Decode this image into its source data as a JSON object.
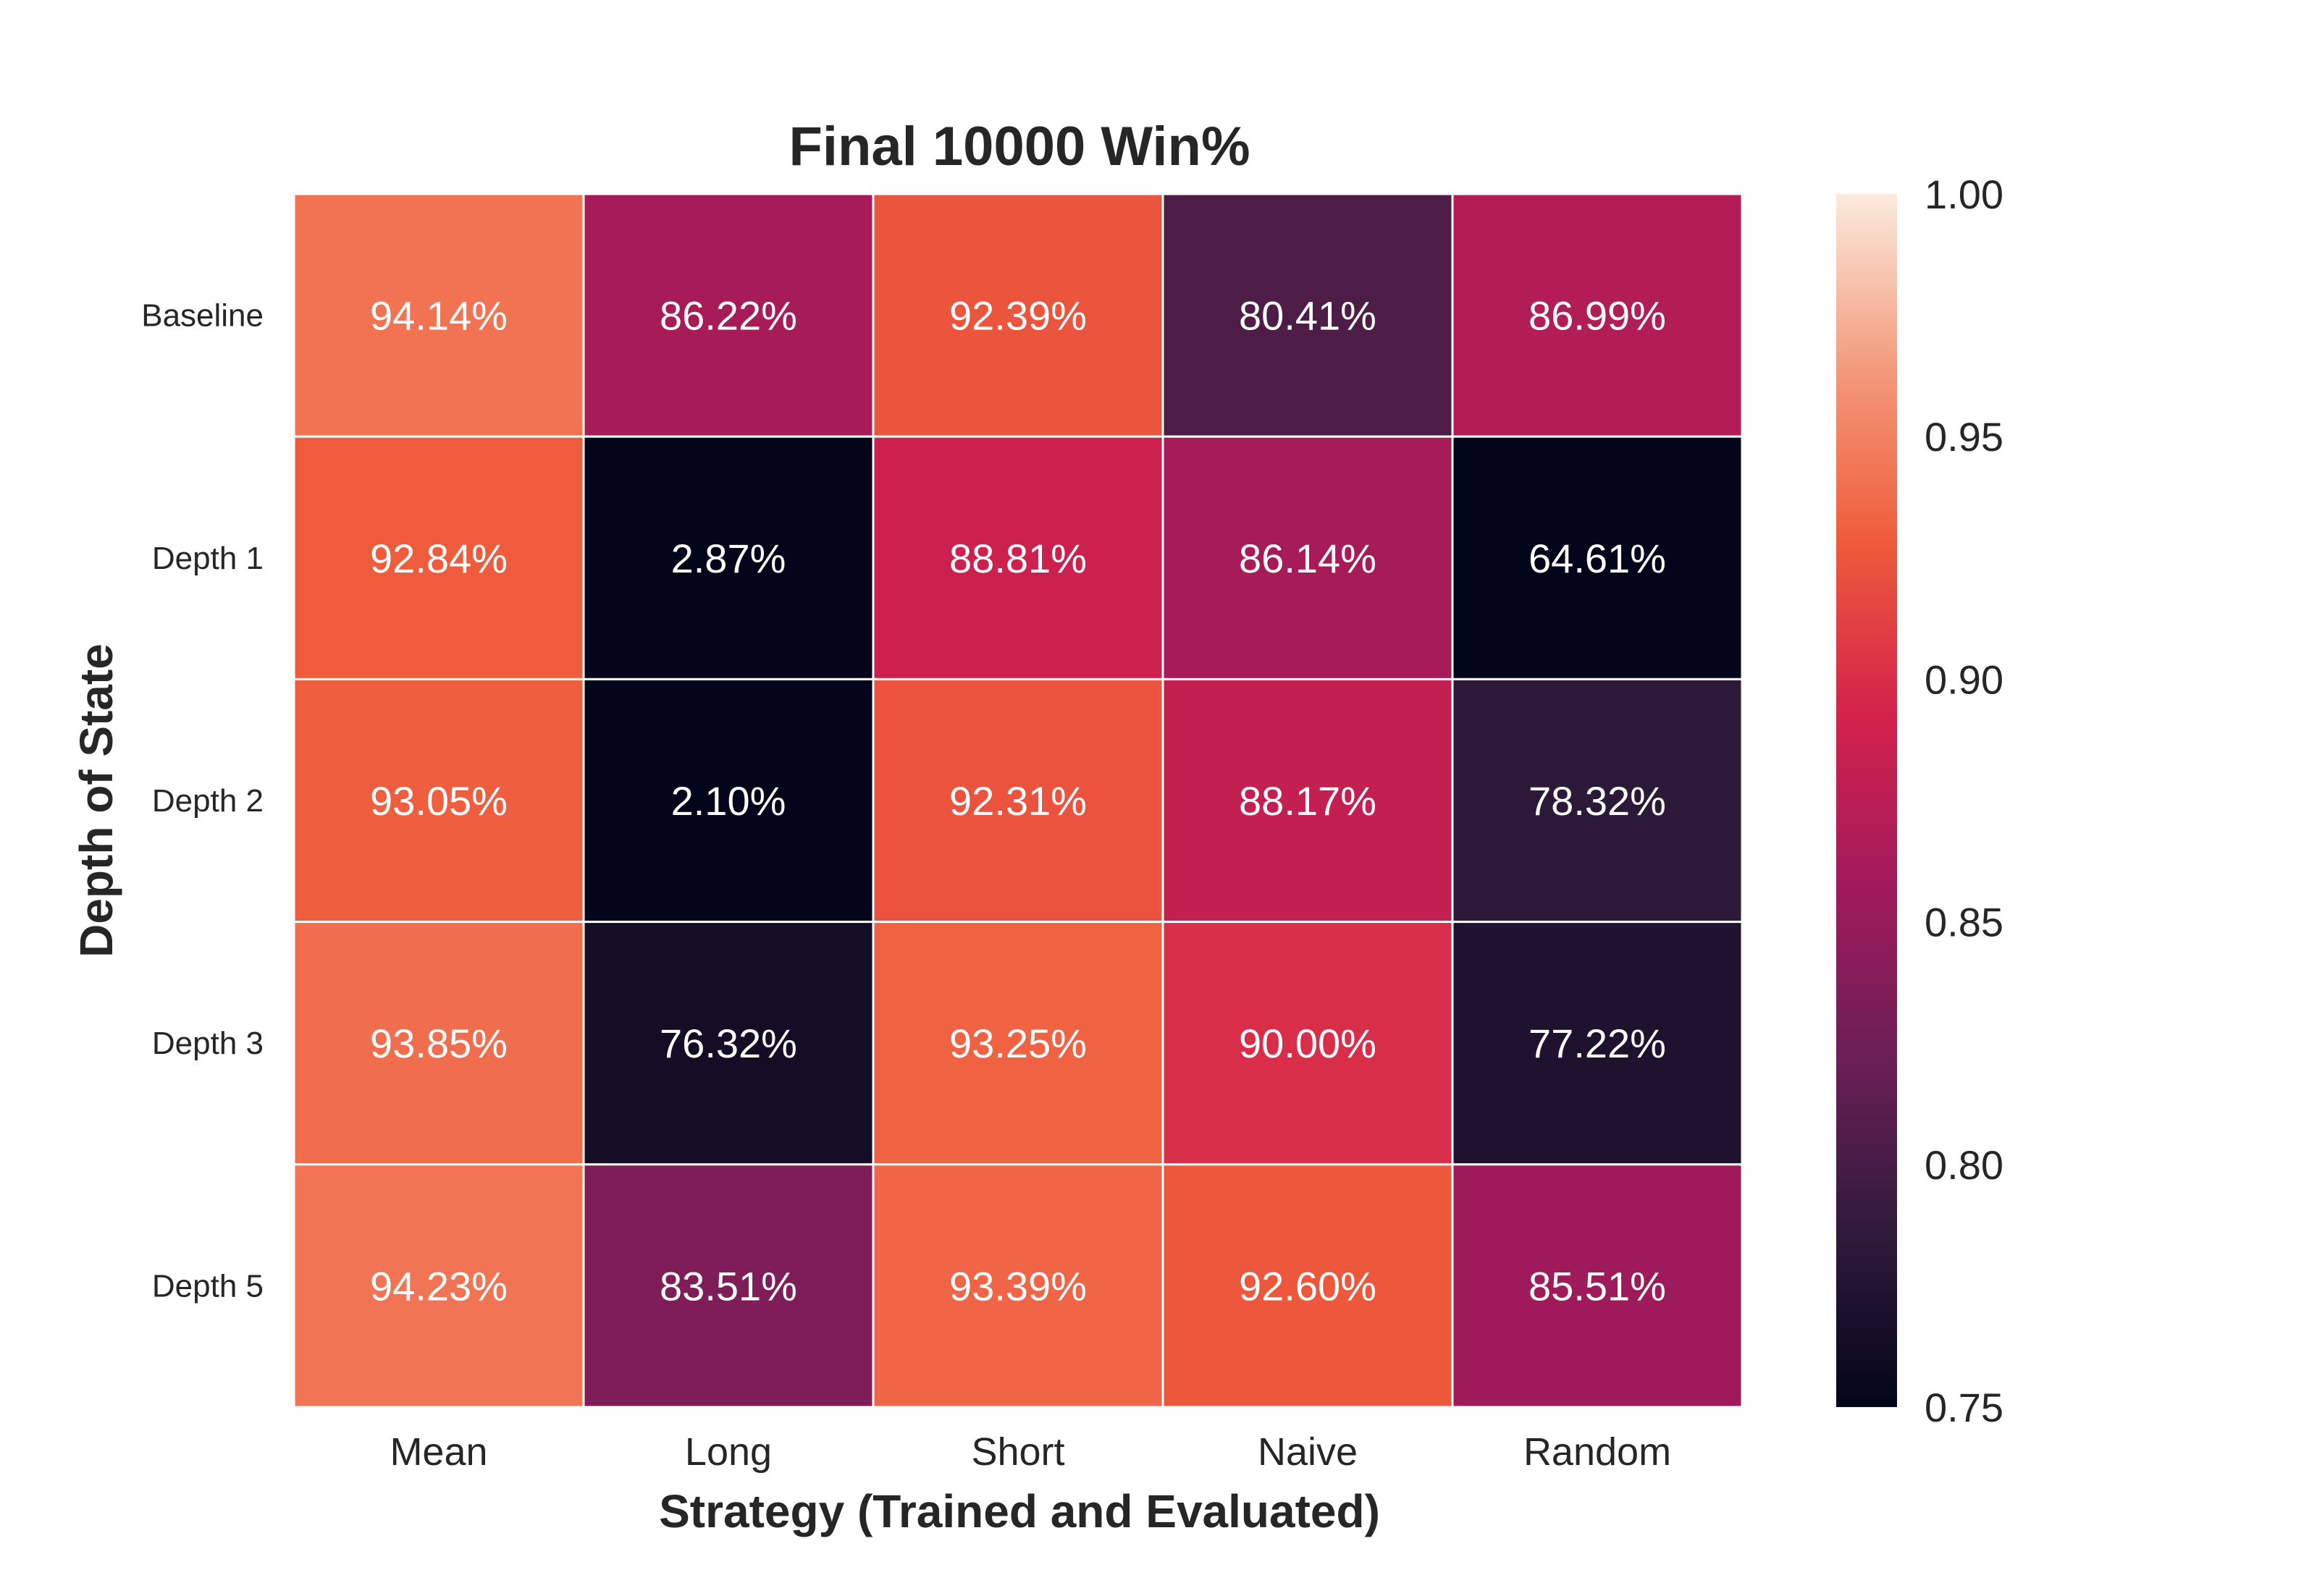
{
  "chart_data": {
    "type": "heatmap",
    "title": "Final 10000 Win%",
    "xlabel": "Strategy (Trained and Evaluated)",
    "ylabel": "Depth of State",
    "x_categories": [
      "Mean",
      "Long",
      "Short",
      "Naive",
      "Random"
    ],
    "y_categories": [
      "Baseline",
      "Depth 1",
      "Depth 2",
      "Depth 3",
      "Depth 5"
    ],
    "values": [
      [
        0.9414,
        0.8622,
        0.9239,
        0.8041,
        0.8699
      ],
      [
        0.9284,
        0.0287,
        0.8881,
        0.8614,
        0.6461
      ],
      [
        0.9305,
        0.021,
        0.9231,
        0.8817,
        0.7832
      ],
      [
        0.9385,
        0.7632,
        0.9325,
        0.9,
        0.7722
      ],
      [
        0.9423,
        0.8351,
        0.9339,
        0.926,
        0.8551
      ]
    ],
    "cell_labels": [
      [
        "94.14%",
        "86.22%",
        "92.39%",
        "80.41%",
        "86.99%"
      ],
      [
        "92.84%",
        "2.87%",
        "88.81%",
        "86.14%",
        "64.61%"
      ],
      [
        "93.05%",
        "2.10%",
        "92.31%",
        "88.17%",
        "78.32%"
      ],
      [
        "93.85%",
        "76.32%",
        "93.25%",
        "90.00%",
        "77.22%"
      ],
      [
        "94.23%",
        "83.51%",
        "93.39%",
        "92.60%",
        "85.51%"
      ]
    ],
    "colorbar": {
      "vmin": 0.75,
      "vmax": 1.0,
      "ticks": [
        1.0,
        0.95,
        0.9,
        0.85,
        0.8,
        0.75
      ],
      "tick_labels": [
        "1.00",
        "0.95",
        "0.90",
        "0.85",
        "0.80",
        "0.75"
      ],
      "colormap": "rocket",
      "colormap_stops": [
        "#03051a",
        "#2f1a3a",
        "#6a1f56",
        "#a11a5b",
        "#d3224c",
        "#ef5c3b",
        "#f49b7c",
        "#faebdd"
      ]
    },
    "grid": false
  }
}
